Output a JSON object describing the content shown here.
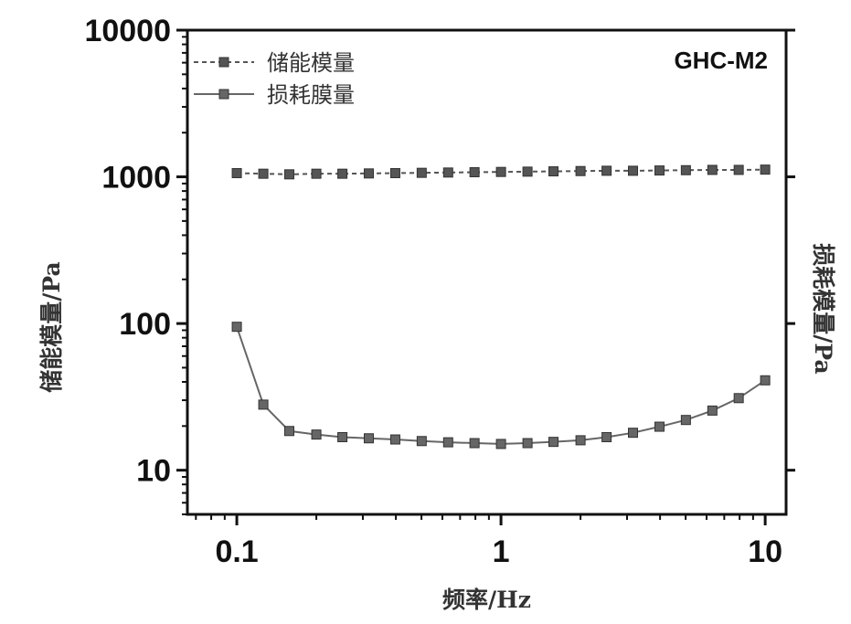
{
  "chart_data": {
    "type": "line",
    "tag": "GHC-M2",
    "xlabel": "频率/Hz",
    "ylabel_left": "储能模量/Pa",
    "ylabel_right": "损耗模量/Pa",
    "x_scale": "log",
    "y_scale": "log",
    "xlim": [
      0.065,
      12
    ],
    "ylim": [
      5,
      10000
    ],
    "x_ticks": [
      0.1,
      1,
      10
    ],
    "x_tick_labels": [
      "0.1",
      "1",
      "10"
    ],
    "y_ticks": [
      10,
      100,
      1000,
      10000
    ],
    "y_tick_labels": [
      "10",
      "100",
      "1000",
      "10000"
    ],
    "grid": false,
    "legend_position": "top-left",
    "x": [
      0.1,
      0.126,
      0.158,
      0.2,
      0.251,
      0.316,
      0.398,
      0.501,
      0.631,
      0.794,
      1.0,
      1.26,
      1.58,
      2.0,
      2.51,
      3.16,
      3.98,
      5.01,
      6.31,
      7.94,
      10.0
    ],
    "series": [
      {
        "name": "储能模量",
        "color": "#555555",
        "line_style": "dashed",
        "values": [
          1060,
          1050,
          1040,
          1050,
          1050,
          1055,
          1060,
          1065,
          1070,
          1075,
          1080,
          1085,
          1090,
          1095,
          1100,
          1100,
          1105,
          1110,
          1115,
          1115,
          1120
        ]
      },
      {
        "name": "损耗膜量",
        "color": "#666666",
        "line_style": "solid",
        "values": [
          95,
          28,
          18.5,
          17.5,
          16.8,
          16.5,
          16.2,
          15.8,
          15.5,
          15.3,
          15.1,
          15.3,
          15.6,
          16.0,
          16.8,
          18.0,
          19.8,
          22.0,
          25.5,
          31.0,
          41.0
        ]
      }
    ]
  }
}
